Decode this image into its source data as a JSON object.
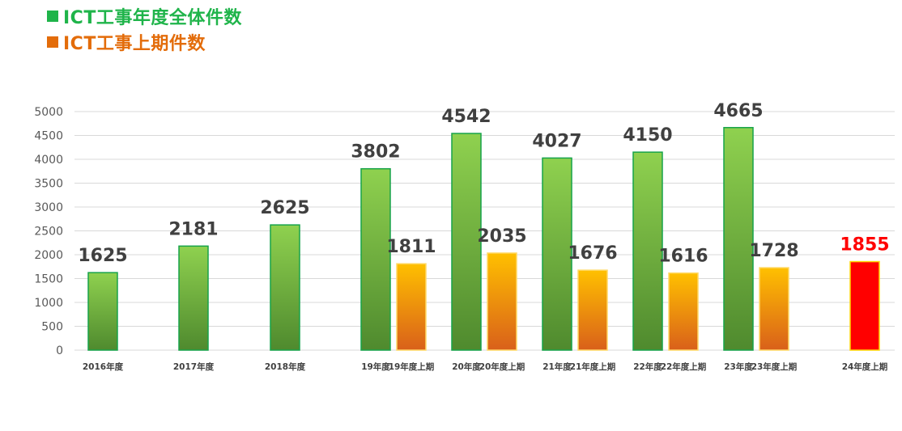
{
  "legend": [
    {
      "label": "ICT工事年度全体件数",
      "color": "#1fb44a"
    },
    {
      "label": "ICT工事上期件数",
      "color": "#e36c0a"
    }
  ],
  "colors": {
    "total_top": "#8fd14f",
    "total_bottom": "#4f8a2e",
    "total_border": "#17a34a",
    "first_top": "#ffc000",
    "first_bottom": "#d9601a",
    "first_border": "#ffd966",
    "highlight": "#ff0000",
    "highlight_border": "#ffd700",
    "label": "#404040",
    "highlight_label": "#ff0000",
    "grid": "#d9d9d9",
    "axis_text": "#595959"
  },
  "chart_data": {
    "type": "bar",
    "categories": [
      "2016年度",
      "2017年度",
      "2018年度",
      "19年度",
      "19年度上期",
      "20年度",
      "20年度上期",
      "21年度",
      "21年度上期",
      "22年度",
      "22年度上期",
      "23年度",
      "23年度上期",
      "24年度上期"
    ],
    "values": [
      1625,
      2181,
      2625,
      3802,
      1811,
      4542,
      2035,
      4027,
      1676,
      4150,
      1616,
      4665,
      1728,
      1855
    ],
    "data_labels": [
      "1625",
      "2181",
      "2625",
      "3802",
      "1811",
      "4542",
      "2035",
      "4027",
      "1676",
      "4150",
      "1616",
      "4665",
      "1728",
      "1855"
    ],
    "series_kind": [
      "total",
      "total",
      "total",
      "total",
      "first",
      "total",
      "first",
      "total",
      "first",
      "total",
      "first",
      "total",
      "first",
      "highlight"
    ],
    "yticks": [
      "0",
      "500",
      "1000",
      "1500",
      "2000",
      "2500",
      "3000",
      "3500",
      "4000",
      "4500",
      "5000"
    ],
    "ylim": [
      0,
      5000
    ],
    "grid": true,
    "legend_position": "top-left"
  }
}
